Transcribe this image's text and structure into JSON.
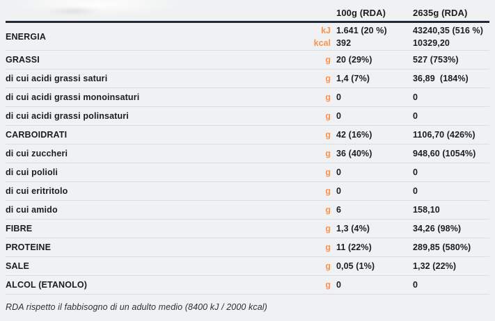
{
  "header": {
    "col_100g": "100g (RDA)",
    "col_2635g": "2635g (RDA)"
  },
  "energy": {
    "label": "ENERGIA",
    "lines": [
      {
        "unit": "kJ",
        "v1": "1.641 (20 %)",
        "v2": "43240,35 (516 %)"
      },
      {
        "unit": "kcal",
        "v1": "392",
        "v2": "10329,20"
      }
    ]
  },
  "rows": [
    {
      "label": "GRASSI",
      "major": true,
      "unit": "g",
      "v1": "20 (29%)",
      "v2": "527 (753%)"
    },
    {
      "label": "di cui acidi grassi saturi",
      "major": false,
      "unit": "g",
      "v1": "1,4 (7%)",
      "v2": "36,89  (184%)"
    },
    {
      "label": "di cui acidi grassi monoinsaturi",
      "major": false,
      "unit": "g",
      "v1": "0",
      "v2": "0"
    },
    {
      "label": "di cui acidi grassi polinsaturi",
      "major": false,
      "unit": "g",
      "v1": "0",
      "v2": "0"
    },
    {
      "label": "CARBOIDRATI",
      "major": true,
      "unit": "g",
      "v1": "42 (16%)",
      "v2": "1106,70 (426%)"
    },
    {
      "label": "di cui zuccheri",
      "major": false,
      "unit": "g",
      "v1": "36 (40%)",
      "v2": "948,60 (1054%)"
    },
    {
      "label": "di cui polioli",
      "major": false,
      "unit": "g",
      "v1": "0",
      "v2": "0"
    },
    {
      "label": "di cui eritritolo",
      "major": false,
      "unit": "g",
      "v1": "0",
      "v2": "0"
    },
    {
      "label": "di cui amido",
      "major": false,
      "unit": "g",
      "v1": "6",
      "v2": "158,10"
    },
    {
      "label": "FIBRE",
      "major": true,
      "unit": "g",
      "v1": "1,3 (4%)",
      "v2": "34,26 (98%)"
    },
    {
      "label": "PROTEINE",
      "major": true,
      "unit": "g",
      "v1": "11 (22%)",
      "v2": "289,85 (580%)"
    },
    {
      "label": "SALE",
      "major": true,
      "unit": "g",
      "v1": "0,05 (1%)",
      "v2": "1,32 (22%)"
    },
    {
      "label": "ALCOL (ETANOLO)",
      "major": true,
      "unit": "g",
      "v1": "0",
      "v2": "0"
    }
  ],
  "footer": {
    "note": "RDA rispetto il fabbisogno di un adulto medio (8400 kJ / 2000 kcal)"
  },
  "colors": {
    "accent_orange": "#F79450",
    "header_rule": "#1F2A36",
    "row_separator": "#DCDDE0",
    "background": "#F0F1F2",
    "text": "#1A1C20"
  }
}
